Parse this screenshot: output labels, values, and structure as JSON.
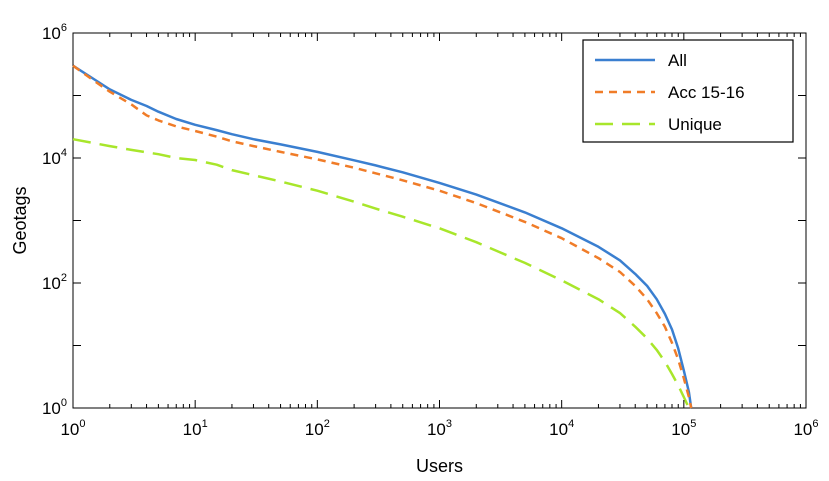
{
  "chart_data": {
    "type": "line",
    "xlabel": "Users",
    "ylabel": "Geotags",
    "x_scale": "log",
    "y_scale": "log",
    "xlim": [
      1,
      1000000
    ],
    "ylim": [
      1,
      1000000
    ],
    "x_ticks": [
      {
        "base": "10",
        "exp": "0",
        "value": 1
      },
      {
        "base": "10",
        "exp": "1",
        "value": 10
      },
      {
        "base": "10",
        "exp": "2",
        "value": 100
      },
      {
        "base": "10",
        "exp": "3",
        "value": 1000
      },
      {
        "base": "10",
        "exp": "4",
        "value": 10000
      },
      {
        "base": "10",
        "exp": "5",
        "value": 100000
      },
      {
        "base": "10",
        "exp": "6",
        "value": 1000000
      }
    ],
    "y_ticks": [
      {
        "base": "10",
        "exp": "0",
        "value": 1
      },
      {
        "base": "10",
        "exp": "2",
        "value": 100
      },
      {
        "base": "10",
        "exp": "4",
        "value": 10000
      },
      {
        "base": "10",
        "exp": "6",
        "value": 1000000
      }
    ],
    "legend_position": "top-right",
    "series": [
      {
        "name": "All",
        "color": "#3a7fd0",
        "dash": "solid",
        "points": [
          [
            1,
            300000
          ],
          [
            1.5,
            180000
          ],
          [
            2,
            125000
          ],
          [
            3,
            85000
          ],
          [
            4,
            68000
          ],
          [
            5,
            55000
          ],
          [
            7,
            42000
          ],
          [
            10,
            34000
          ],
          [
            15,
            28000
          ],
          [
            20,
            24000
          ],
          [
            30,
            20000
          ],
          [
            50,
            16500
          ],
          [
            100,
            12500
          ],
          [
            200,
            9200
          ],
          [
            300,
            7600
          ],
          [
            500,
            5900
          ],
          [
            1000,
            4000
          ],
          [
            2000,
            2600
          ],
          [
            3000,
            1950
          ],
          [
            5000,
            1350
          ],
          [
            10000,
            750
          ],
          [
            20000,
            380
          ],
          [
            30000,
            230
          ],
          [
            40000,
            140
          ],
          [
            50000,
            90
          ],
          [
            60000,
            55
          ],
          [
            70000,
            32
          ],
          [
            80000,
            18
          ],
          [
            90000,
            9
          ],
          [
            100000,
            4
          ],
          [
            110000,
            1.8
          ],
          [
            115000,
            1
          ]
        ]
      },
      {
        "name": "Acc 15-16",
        "color": "#f07c28",
        "dash": "short",
        "points": [
          [
            1,
            300000
          ],
          [
            1.5,
            170000
          ],
          [
            2,
            115000
          ],
          [
            3,
            72000
          ],
          [
            4,
            48000
          ],
          [
            5,
            40000
          ],
          [
            7,
            32000
          ],
          [
            10,
            27000
          ],
          [
            15,
            22000
          ],
          [
            20,
            18500
          ],
          [
            30,
            15500
          ],
          [
            50,
            12500
          ],
          [
            100,
            9500
          ],
          [
            200,
            7000
          ],
          [
            300,
            5700
          ],
          [
            500,
            4400
          ],
          [
            1000,
            3000
          ],
          [
            2000,
            1900
          ],
          [
            3000,
            1400
          ],
          [
            5000,
            950
          ],
          [
            10000,
            520
          ],
          [
            20000,
            250
          ],
          [
            30000,
            150
          ],
          [
            40000,
            90
          ],
          [
            50000,
            55
          ],
          [
            60000,
            33
          ],
          [
            70000,
            20
          ],
          [
            80000,
            11
          ],
          [
            90000,
            6
          ],
          [
            100000,
            3
          ],
          [
            110000,
            1.5
          ],
          [
            115000,
            1
          ]
        ]
      },
      {
        "name": "Unique",
        "color": "#a8e62b",
        "dash": "long",
        "points": [
          [
            1,
            20000
          ],
          [
            2,
            15500
          ],
          [
            3,
            13500
          ],
          [
            5,
            11500
          ],
          [
            7,
            10000
          ],
          [
            10,
            9300
          ],
          [
            15,
            7800
          ],
          [
            20,
            6400
          ],
          [
            30,
            5300
          ],
          [
            50,
            4200
          ],
          [
            100,
            3000
          ],
          [
            200,
            2000
          ],
          [
            300,
            1550
          ],
          [
            500,
            1150
          ],
          [
            1000,
            750
          ],
          [
            2000,
            450
          ],
          [
            3000,
            320
          ],
          [
            5000,
            210
          ],
          [
            10000,
            110
          ],
          [
            20000,
            55
          ],
          [
            30000,
            33
          ],
          [
            40000,
            20
          ],
          [
            50000,
            13
          ],
          [
            60000,
            8.5
          ],
          [
            70000,
            5.5
          ],
          [
            80000,
            3.5
          ],
          [
            90000,
            2.3
          ],
          [
            100000,
            1.5
          ],
          [
            110000,
            1
          ]
        ]
      }
    ]
  }
}
